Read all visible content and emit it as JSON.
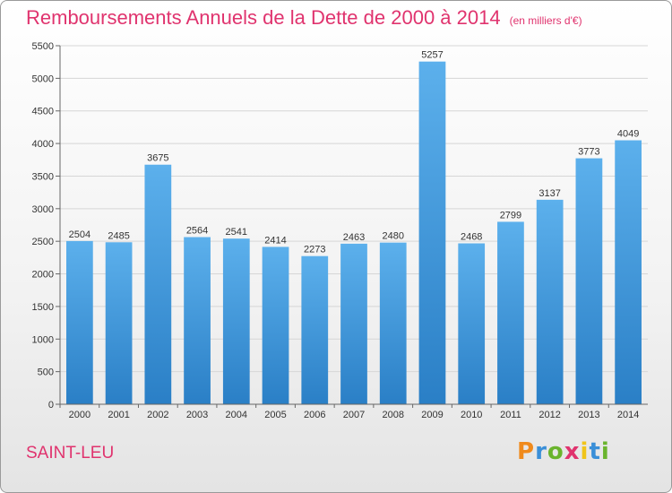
{
  "chart_data": {
    "type": "bar",
    "title": "Remboursements Annuels de la Dette de 2000 à 2014",
    "subtitle": "(en milliers d'€)",
    "categories": [
      "2000",
      "2001",
      "2002",
      "2003",
      "2004",
      "2005",
      "2006",
      "2007",
      "2008",
      "2009",
      "2010",
      "2011",
      "2012",
      "2013",
      "2014"
    ],
    "values": [
      2504,
      2485,
      3675,
      2564,
      2541,
      2414,
      2273,
      2463,
      2480,
      5257,
      2468,
      2799,
      3137,
      3773,
      4049
    ],
    "ylim": [
      0,
      5500
    ],
    "yticks": [
      0,
      500,
      1000,
      1500,
      2000,
      2500,
      3000,
      3500,
      4000,
      4500,
      5000,
      5500
    ],
    "grid": true,
    "bar_color": "#4a9ee0"
  },
  "footer": {
    "city": "SAINT-LEU",
    "logo": [
      "P",
      "r",
      "o",
      "x",
      "i",
      "t",
      "i"
    ],
    "logo_colors": [
      "#f08a1c",
      "#3a8fd8",
      "#6ab42d",
      "#e0336e",
      "#f0c419",
      "#3a8fd8",
      "#6ab42d"
    ]
  }
}
